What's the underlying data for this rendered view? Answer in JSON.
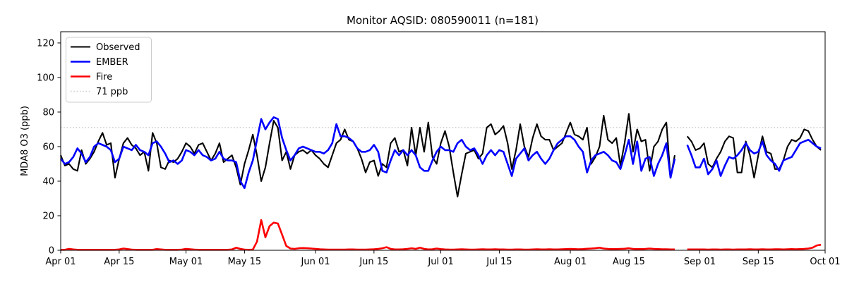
{
  "chart_data": {
    "type": "line",
    "title": "Monitor AQSID: 080590011 (n=181)",
    "xlabel": "",
    "ylabel": "MDA8 O3 (ppb)",
    "x_start": "Apr 01",
    "x_end": "Oct 01",
    "x_days": 183,
    "x_ticks": [
      {
        "label": "Apr 01",
        "day": 0
      },
      {
        "label": "Apr 15",
        "day": 14
      },
      {
        "label": "May 01",
        "day": 30
      },
      {
        "label": "May 15",
        "day": 44
      },
      {
        "label": "Jun 01",
        "day": 61
      },
      {
        "label": "Jun 15",
        "day": 75
      },
      {
        "label": "Jul 01",
        "day": 91
      },
      {
        "label": "Jul 15",
        "day": 105
      },
      {
        "label": "Aug 01",
        "day": 122
      },
      {
        "label": "Aug 15",
        "day": 136
      },
      {
        "label": "Sep 01",
        "day": 153
      },
      {
        "label": "Sep 15",
        "day": 167
      },
      {
        "label": "Oct 01",
        "day": 183
      }
    ],
    "y_ticks": [
      0,
      20,
      40,
      60,
      80,
      100,
      120
    ],
    "ylim": [
      0,
      126.5
    ],
    "grid": false,
    "legend_position": "upper left",
    "threshold": {
      "label": "71 ppb",
      "value": 71,
      "color": "#c8c8c8",
      "style": "dotted"
    },
    "series": [
      {
        "name": "Observed",
        "color": "#000000",
        "values": [
          55,
          49,
          50,
          47,
          46,
          58,
          50,
          53,
          57,
          63,
          68,
          61,
          62,
          42,
          53,
          62,
          65,
          61,
          59,
          55,
          57,
          46,
          68,
          62,
          48,
          47,
          52,
          51,
          53,
          57,
          62,
          60,
          56,
          61,
          62,
          57,
          52,
          56,
          62,
          51,
          53,
          55,
          48,
          38,
          50,
          58,
          67,
          55,
          40,
          48,
          62,
          75,
          71,
          52,
          57,
          47,
          55,
          57,
          58,
          56,
          58,
          55,
          53,
          50,
          48,
          55,
          62,
          64,
          70,
          64,
          63,
          59,
          53,
          45,
          51,
          52,
          43,
          50,
          48,
          62,
          65,
          57,
          58,
          49,
          71,
          55,
          71,
          57,
          74,
          54,
          50,
          62,
          69,
          60,
          45,
          31,
          44,
          56,
          57,
          58,
          53,
          56,
          71,
          73,
          67,
          69,
          72,
          62,
          47,
          58,
          73,
          60,
          54,
          65,
          73,
          66,
          64,
          64,
          58,
          60,
          62,
          68,
          74,
          67,
          66,
          64,
          71,
          50,
          54,
          60,
          78,
          64,
          62,
          65,
          49,
          62,
          79,
          57,
          70,
          63,
          64,
          46,
          60,
          63,
          70,
          74,
          42,
          55,
          null,
          null,
          66,
          63,
          58,
          59,
          62,
          50,
          48,
          53,
          57,
          63,
          66,
          65,
          45,
          45,
          63,
          55,
          42,
          55,
          66,
          57,
          56,
          47,
          47,
          52,
          60,
          64,
          63,
          65,
          70,
          69,
          64,
          60,
          58
        ]
      },
      {
        "name": "EMBER",
        "color": "#0000ff",
        "values": [
          53,
          50,
          51,
          54,
          59,
          56,
          51,
          54,
          60,
          62,
          61,
          60,
          58,
          51,
          53,
          60,
          59,
          58,
          61,
          58,
          57,
          55,
          62,
          63,
          60,
          56,
          51,
          52,
          50,
          52,
          58,
          57,
          55,
          58,
          55,
          54,
          52,
          53,
          57,
          53,
          52,
          52,
          51,
          40,
          36,
          45,
          52,
          64,
          76,
          70,
          74,
          77,
          76,
          65,
          58,
          52,
          55,
          59,
          60,
          59,
          58,
          57,
          57,
          56,
          58,
          62,
          73,
          66,
          66,
          65,
          63,
          59,
          57,
          57,
          58,
          61,
          57,
          46,
          45,
          52,
          58,
          55,
          58,
          55,
          58,
          55,
          48,
          46,
          46,
          52,
          57,
          60,
          58,
          58,
          57,
          62,
          64,
          60,
          58,
          59,
          55,
          50,
          55,
          58,
          55,
          58,
          57,
          50,
          43,
          53,
          56,
          59,
          52,
          55,
          57,
          53,
          50,
          53,
          58,
          62,
          64,
          66,
          66,
          64,
          60,
          57,
          45,
          52,
          55,
          56,
          57,
          55,
          52,
          51,
          47,
          55,
          64,
          50,
          63,
          46,
          53,
          54,
          43,
          50,
          55,
          62,
          42,
          53,
          null,
          null,
          61,
          55,
          48,
          48,
          53,
          44,
          47,
          52,
          43,
          49,
          54,
          53,
          55,
          58,
          62,
          58,
          56,
          57,
          63,
          55,
          52,
          50,
          46,
          52,
          53,
          54,
          58,
          62,
          63,
          64,
          62,
          60,
          59
        ]
      },
      {
        "name": "Fire",
        "color": "#ff0000",
        "values": [
          0.3,
          0.3,
          0.8,
          0.5,
          0.3,
          0.3,
          0.3,
          0.3,
          0.3,
          0.3,
          0.3,
          0.3,
          0.3,
          0.3,
          0.5,
          1,
          0.7,
          0.4,
          0.3,
          0.3,
          0.3,
          0.3,
          0.3,
          0.7,
          0.5,
          0.3,
          0.3,
          0.3,
          0.3,
          0.4,
          0.8,
          0.6,
          0.4,
          0.3,
          0.3,
          0.3,
          0.3,
          0.3,
          0.3,
          0.3,
          0.3,
          0.5,
          1.5,
          0.8,
          0.4,
          0.3,
          0.4,
          5,
          17.5,
          7.5,
          14,
          16,
          15.5,
          9,
          2.5,
          1,
          0.8,
          1.2,
          1.3,
          1.2,
          1,
          0.8,
          0.6,
          0.5,
          0.4,
          0.4,
          0.4,
          0.4,
          0.4,
          0.5,
          0.5,
          0.4,
          0.4,
          0.4,
          0.5,
          0.6,
          0.8,
          1.2,
          1.8,
          0.8,
          0.5,
          0.5,
          0.6,
          0.8,
          1.2,
          0.8,
          1.5,
          0.8,
          0.5,
          0.6,
          1,
          0.7,
          0.5,
          0.4,
          0.4,
          0.5,
          0.6,
          0.5,
          0.4,
          0.4,
          0.5,
          0.6,
          0.5,
          0.5,
          0.6,
          0.5,
          0.5,
          0.4,
          0.4,
          0.5,
          0.5,
          0.4,
          0.4,
          0.5,
          0.6,
          0.5,
          0.5,
          0.6,
          0.5,
          0.5,
          0.6,
          0.7,
          0.8,
          0.7,
          0.6,
          0.7,
          0.9,
          1,
          1.2,
          1.5,
          1,
          0.8,
          0.7,
          0.7,
          0.8,
          0.9,
          1.2,
          0.8,
          0.7,
          0.7,
          0.8,
          1,
          0.8,
          0.7,
          0.6,
          0.6,
          0.5,
          0.5,
          null,
          null,
          0.5,
          0.5,
          0.5,
          0.5,
          0.5,
          0.4,
          0.5,
          0.5,
          0.4,
          0.5,
          0.5,
          0.4,
          0.5,
          0.5,
          0.5,
          0.6,
          0.5,
          0.5,
          0.6,
          0.5,
          0.5,
          0.6,
          0.6,
          0.5,
          0.6,
          0.7,
          0.6,
          0.7,
          0.8,
          1,
          1.5,
          2.8,
          3.2
        ]
      }
    ]
  }
}
